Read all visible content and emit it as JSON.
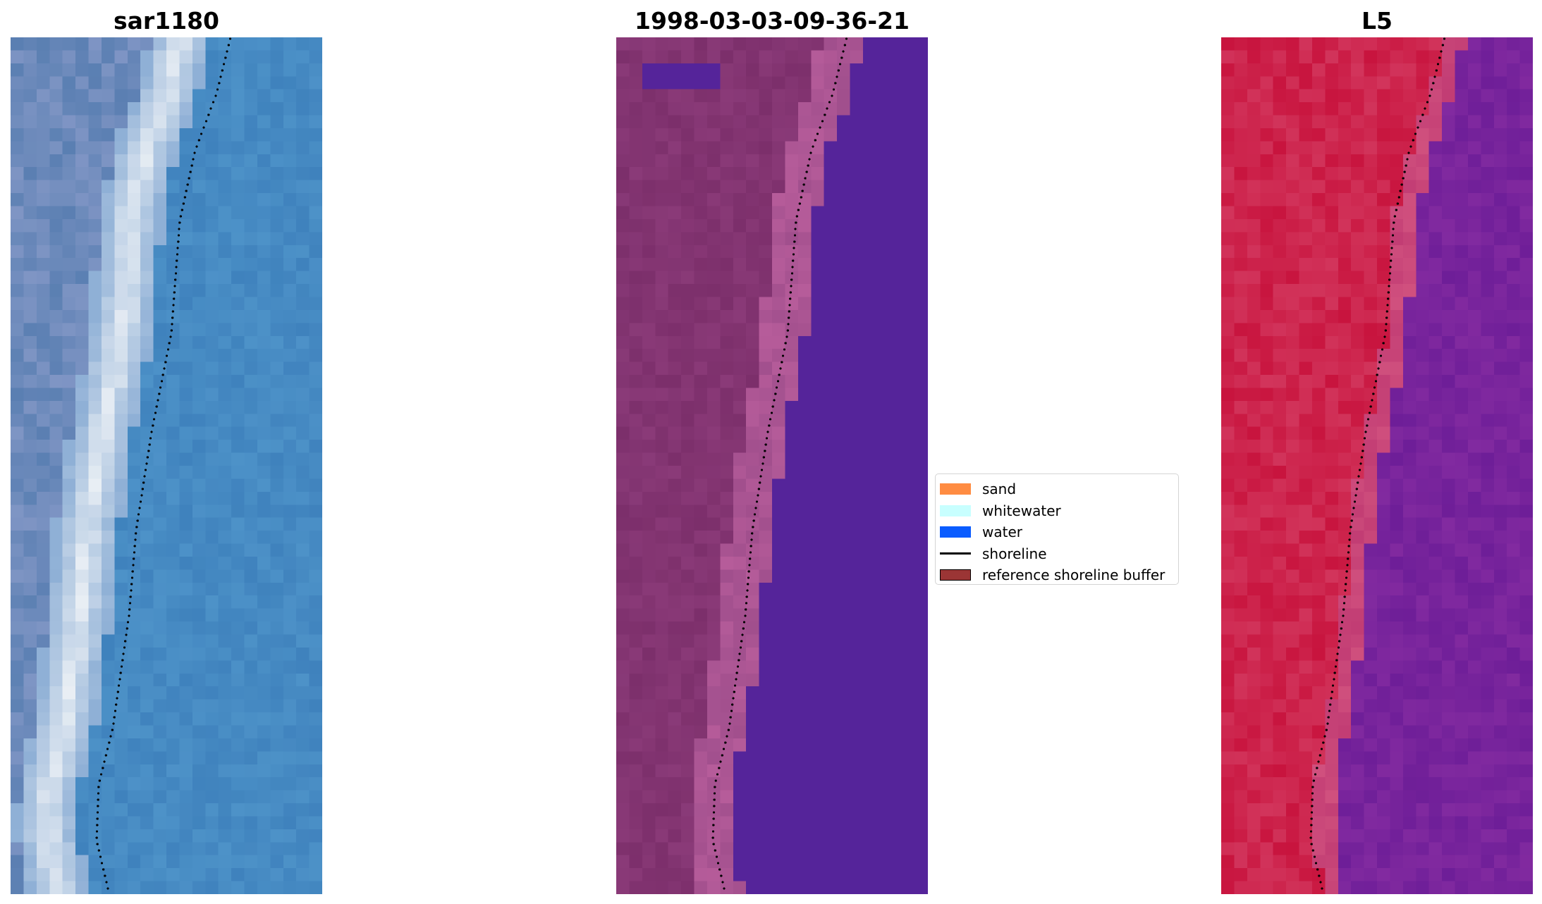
{
  "panels": [
    {
      "title": "sar1180",
      "variant": "rgb"
    },
    {
      "title": "1998-03-03-09-36-21",
      "variant": "classified"
    },
    {
      "title": "L5",
      "variant": "mndwi"
    }
  ],
  "legend": {
    "items": [
      {
        "label": "sand",
        "color": "#ff8c42",
        "kind": "patch"
      },
      {
        "label": "whitewater",
        "color": "#c8ffff",
        "kind": "patch"
      },
      {
        "label": "water",
        "color": "#0a5cff",
        "kind": "patch"
      },
      {
        "label": "shoreline",
        "color": "#000000",
        "kind": "line"
      },
      {
        "label": "reference shoreline buffer",
        "color": "#9b3535",
        "kind": "patch"
      }
    ]
  },
  "colors": {
    "water_rgb": "#3f82bd",
    "whitewater_rgb": "#eef2f6",
    "classified_water": "#55249a",
    "classified_land": "#8a3a78",
    "mndwi_land": "#c8143e",
    "mndwi_water": "#6e1e98",
    "shoreline_dots": "#000000"
  }
}
